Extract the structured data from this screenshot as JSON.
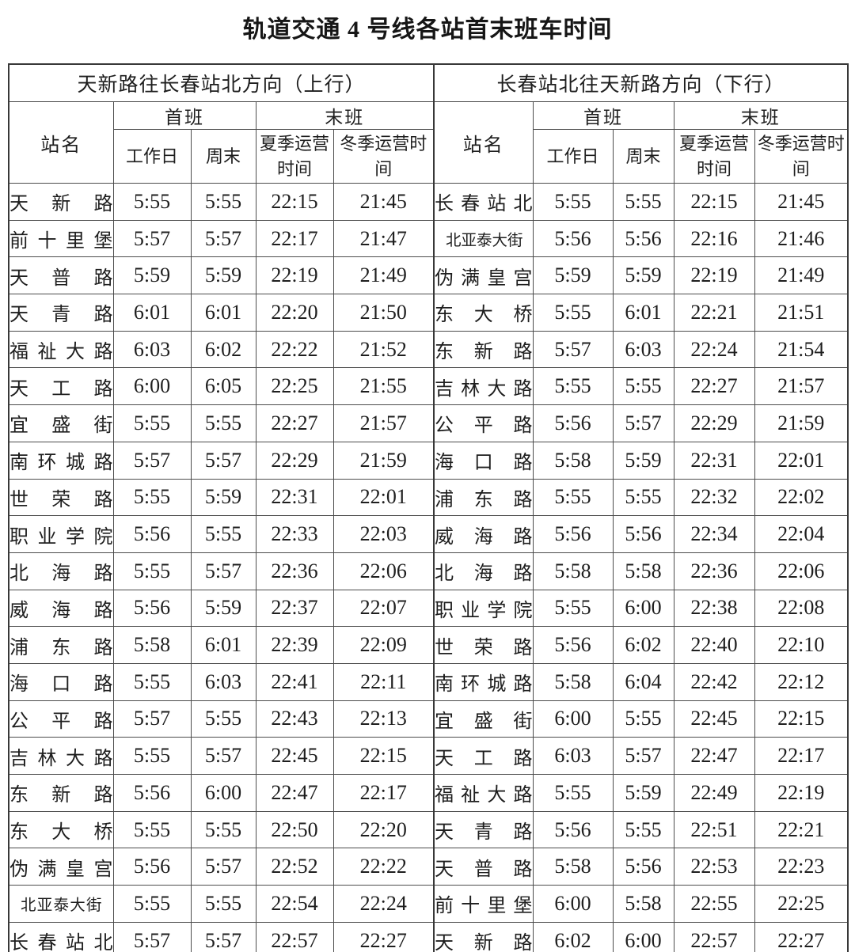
{
  "title": "轨道交通 4 号线各站首末班车时间",
  "table": {
    "columns": {
      "station": "站名",
      "first_group": "首班",
      "last_group": "末班",
      "weekday": "工作日",
      "weekend": "周末",
      "summer": "夏季运营时间",
      "winter": "冬季运营时间"
    },
    "up": {
      "direction": "天新路往长春站北方向（上行）",
      "rows": [
        [
          "天新路",
          "5:55",
          "5:55",
          "22:15",
          "21:45"
        ],
        [
          "前十里堡",
          "5:57",
          "5:57",
          "22:17",
          "21:47"
        ],
        [
          "天普路",
          "5:59",
          "5:59",
          "22:19",
          "21:49"
        ],
        [
          "天青路",
          "6:01",
          "6:01",
          "22:20",
          "21:50"
        ],
        [
          "福祉大路",
          "6:03",
          "6:02",
          "22:22",
          "21:52"
        ],
        [
          "天工路",
          "6:00",
          "6:05",
          "22:25",
          "21:55"
        ],
        [
          "宜盛街",
          "5:55",
          "5:55",
          "22:27",
          "21:57"
        ],
        [
          "南环城路",
          "5:57",
          "5:57",
          "22:29",
          "21:59"
        ],
        [
          "世荣路",
          "5:55",
          "5:59",
          "22:31",
          "22:01"
        ],
        [
          "职业学院",
          "5:56",
          "5:55",
          "22:33",
          "22:03"
        ],
        [
          "北海路",
          "5:55",
          "5:57",
          "22:36",
          "22:06"
        ],
        [
          "威海路",
          "5:56",
          "5:59",
          "22:37",
          "22:07"
        ],
        [
          "浦东路",
          "5:58",
          "6:01",
          "22:39",
          "22:09"
        ],
        [
          "海口路",
          "5:55",
          "6:03",
          "22:41",
          "22:11"
        ],
        [
          "公平路",
          "5:57",
          "5:55",
          "22:43",
          "22:13"
        ],
        [
          "吉林大路",
          "5:55",
          "5:57",
          "22:45",
          "22:15"
        ],
        [
          "东新路",
          "5:56",
          "6:00",
          "22:47",
          "22:17"
        ],
        [
          "东大桥",
          "5:55",
          "5:55",
          "22:50",
          "22:20"
        ],
        [
          "伪满皇宫",
          "5:56",
          "5:57",
          "22:52",
          "22:22"
        ],
        [
          "北亚泰大街",
          "5:55",
          "5:55",
          "22:54",
          "22:24"
        ],
        [
          "长春站北",
          "5:57",
          "5:57",
          "22:57",
          "22:27"
        ]
      ]
    },
    "down": {
      "direction": "长春站北往天新路方向（下行）",
      "rows": [
        [
          "长春站北",
          "5:55",
          "5:55",
          "22:15",
          "21:45"
        ],
        [
          "北亚泰大街",
          "5:56",
          "5:56",
          "22:16",
          "21:46"
        ],
        [
          "伪满皇宫",
          "5:59",
          "5:59",
          "22:19",
          "21:49"
        ],
        [
          "东大桥",
          "5:55",
          "6:01",
          "22:21",
          "21:51"
        ],
        [
          "东新路",
          "5:57",
          "6:03",
          "22:24",
          "21:54"
        ],
        [
          "吉林大路",
          "5:55",
          "5:55",
          "22:27",
          "21:57"
        ],
        [
          "公平路",
          "5:56",
          "5:57",
          "22:29",
          "21:59"
        ],
        [
          "海口路",
          "5:58",
          "5:59",
          "22:31",
          "22:01"
        ],
        [
          "浦东路",
          "5:55",
          "5:55",
          "22:32",
          "22:02"
        ],
        [
          "威海路",
          "5:56",
          "5:56",
          "22:34",
          "22:04"
        ],
        [
          "北海路",
          "5:58",
          "5:58",
          "22:36",
          "22:06"
        ],
        [
          "职业学院",
          "5:55",
          "6:00",
          "22:38",
          "22:08"
        ],
        [
          "世荣路",
          "5:56",
          "6:02",
          "22:40",
          "22:10"
        ],
        [
          "南环城路",
          "5:58",
          "6:04",
          "22:42",
          "22:12"
        ],
        [
          "宜盛街",
          "6:00",
          "5:55",
          "22:45",
          "22:15"
        ],
        [
          "天工路",
          "6:03",
          "5:57",
          "22:47",
          "22:17"
        ],
        [
          "福祉大路",
          "5:55",
          "5:59",
          "22:49",
          "22:19"
        ],
        [
          "天青路",
          "5:56",
          "5:55",
          "22:51",
          "22:21"
        ],
        [
          "天普路",
          "5:58",
          "5:56",
          "22:53",
          "22:23"
        ],
        [
          "前十里堡",
          "6:00",
          "5:58",
          "22:55",
          "22:25"
        ],
        [
          "天新路",
          "6:02",
          "6:00",
          "22:57",
          "22:27"
        ]
      ]
    }
  }
}
